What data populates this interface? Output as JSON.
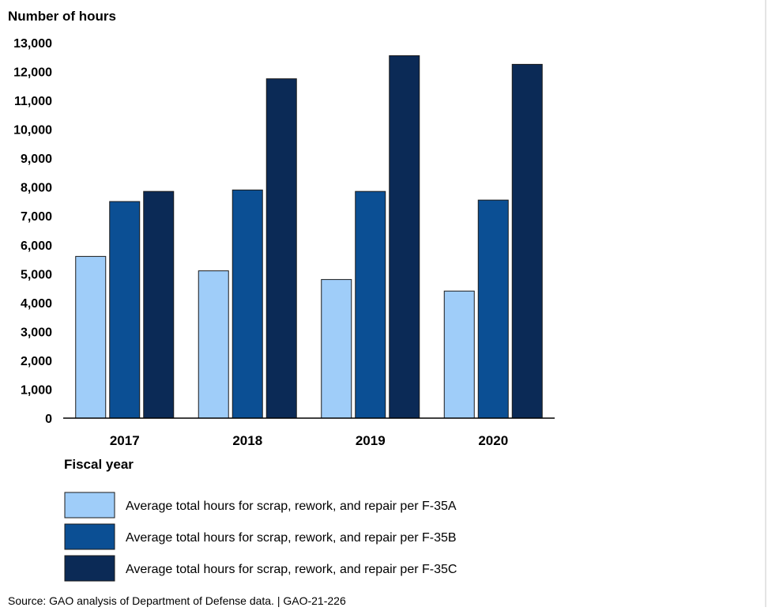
{
  "chart_data": {
    "type": "bar",
    "ylabel": "Number of hours",
    "xlabel": "Fiscal year",
    "categories": [
      "2017",
      "2018",
      "2019",
      "2020"
    ],
    "ylim": [
      0,
      13000
    ],
    "yticks": [
      0,
      1000,
      2000,
      3000,
      4000,
      5000,
      6000,
      7000,
      8000,
      9000,
      10000,
      11000,
      12000,
      13000
    ],
    "ytick_labels": [
      "0",
      "1,000",
      "2,000",
      "3,000",
      "4,000",
      "5,000",
      "6,000",
      "7,000",
      "8,000",
      "9,000",
      "10,000",
      "11,000",
      "12,000",
      "13,000"
    ],
    "grid": false,
    "legend_position": "bottom",
    "series": [
      {
        "name": "Average total hours for scrap, rework, and repair per F-35A",
        "color": "#9fcdf9",
        "values": [
          5600,
          5100,
          4800,
          4400
        ]
      },
      {
        "name": "Average total hours for scrap, rework, and repair per F-35B",
        "color": "#0b4f94",
        "values": [
          7500,
          7900,
          7850,
          7550
        ]
      },
      {
        "name": "Average total hours for scrap, rework, and repair per F-35C",
        "color": "#0b2a56",
        "values": [
          7850,
          11750,
          12550,
          12250
        ]
      }
    ],
    "source": "Source: GAO analysis of Department of Defense data.  |  GAO-21-226"
  }
}
